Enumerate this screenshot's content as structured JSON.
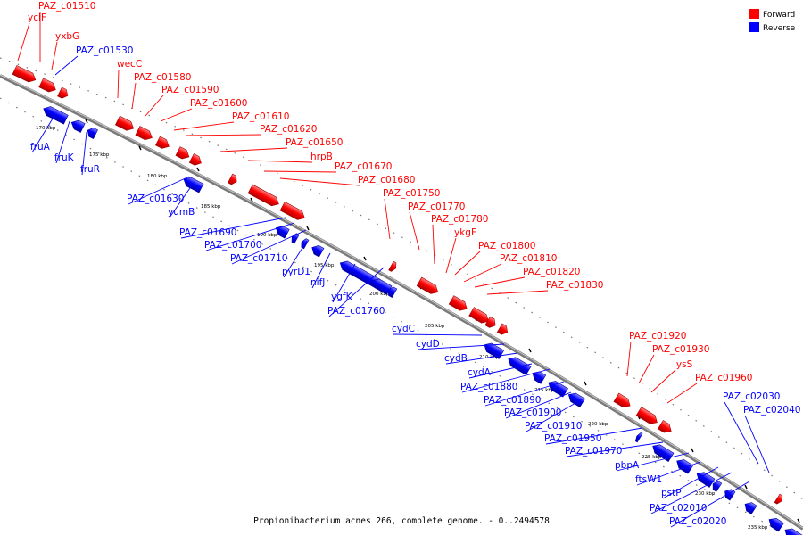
{
  "legend": {
    "forward": {
      "label": "Forward",
      "color": "#ff0000"
    },
    "reverse": {
      "label": "Reverse",
      "color": "#0000ff"
    }
  },
  "caption": "Propionibacterium acnes 266, complete genome. - 0..2494578",
  "colors": {
    "forward": "#ff0000",
    "reverse": "#0000ff",
    "backbone": "#7a7a7a"
  },
  "ticks": [
    "170 kbp",
    "175 kbp",
    "180 kbp",
    "185 kbp",
    "190 kbp",
    "195 kbp",
    "200 kbp",
    "205 kbp",
    "210 kbp",
    "215 kbp",
    "220 kbp",
    "225 kbp",
    "230 kbp",
    "235 kbp"
  ],
  "forward_genes": [
    "yclF",
    "PAZ_c01510",
    "yxbG",
    "wecC",
    "PAZ_c01580",
    "PAZ_c01590",
    "PAZ_c01600",
    "PAZ_c01610",
    "PAZ_c01620",
    "PAZ_c01650",
    "hrpB",
    "PAZ_c01670",
    "PAZ_c01680",
    "PAZ_c01750",
    "PAZ_c01770",
    "PAZ_c01780",
    "ykgF",
    "PAZ_c01800",
    "PAZ_c01810",
    "PAZ_c01820",
    "PAZ_c01830",
    "PAZ_c01920",
    "PAZ_c01930",
    "lysS",
    "PAZ_c01960"
  ],
  "reverse_genes": [
    "PAZ_c01530",
    "fruA",
    "fruK",
    "fruR",
    "PAZ_c01630",
    "yumB",
    "PAZ_c01690",
    "PAZ_c01700",
    "PAZ_c01710",
    "pyrD1",
    "nifJ",
    "ygfK",
    "PAZ_c01760",
    "cydC",
    "cydD",
    "cydB",
    "cydA",
    "PAZ_c01880",
    "PAZ_c01890",
    "PAZ_c01900",
    "PAZ_c01910",
    "PAZ_c01950",
    "PAZ_c01970",
    "pbpA",
    "ftsW1",
    "pstP",
    "PAZ_c02010",
    "PAZ_c02020",
    "PAZ_c02030",
    "PAZ_c02040"
  ]
}
